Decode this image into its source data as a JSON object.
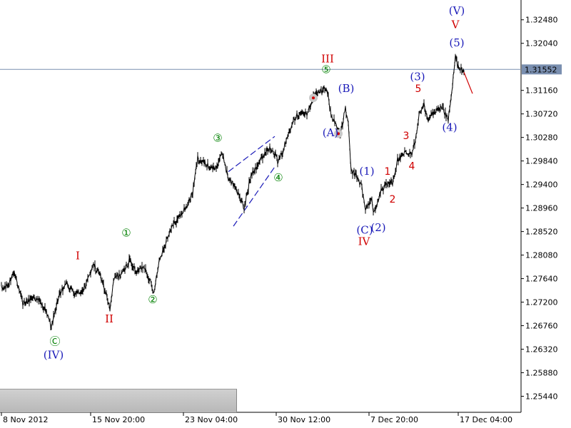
{
  "chart_data": {
    "type": "line",
    "instrument_price": {
      "current": 1.31552,
      "current_label": "1.31552"
    },
    "ylim": [
      1.2514,
      1.3285
    ],
    "y_ticks": [
      "1.32480",
      "1.32040",
      "1.31160",
      "1.30720",
      "1.30280",
      "1.29840",
      "1.29400",
      "1.28960",
      "1.28520",
      "1.28080",
      "1.27640",
      "1.27200",
      "1.26760",
      "1.26320",
      "1.25880",
      "1.25440"
    ],
    "y_tick_values": [
      1.3248,
      1.3204,
      1.3116,
      1.3072,
      1.3028,
      1.2984,
      1.294,
      1.2896,
      1.2852,
      1.2808,
      1.2764,
      1.272,
      1.2676,
      1.2632,
      1.2588,
      1.2544
    ],
    "x_ticks": [
      "8 Nov 2012",
      "15 Nov 20:00",
      "23 Nov 04:00",
      "30 Nov 12:00",
      "7 Dec 20:00",
      "17 Dec 04:00"
    ],
    "x_tick_index": [
      0,
      125,
      255,
      385,
      515,
      640
    ],
    "series": [
      {
        "anchors": [
          [
            0,
            1.2745
          ],
          [
            10,
            1.2752
          ],
          [
            18,
            1.2782
          ],
          [
            22,
            1.2755
          ],
          [
            30,
            1.2715
          ],
          [
            45,
            1.273
          ],
          [
            55,
            1.2718
          ],
          [
            62,
            1.2705
          ],
          [
            70,
            1.2672
          ],
          [
            78,
            1.272
          ],
          [
            90,
            1.2755
          ],
          [
            105,
            1.2735
          ],
          [
            118,
            1.2748
          ],
          [
            128,
            1.279
          ],
          [
            138,
            1.2772
          ],
          [
            148,
            1.273
          ],
          [
            152,
            1.2705
          ],
          [
            158,
            1.2765
          ],
          [
            170,
            1.2775
          ],
          [
            180,
            1.28
          ],
          [
            188,
            1.2775
          ],
          [
            200,
            1.2788
          ],
          [
            208,
            1.276
          ],
          [
            213,
            1.2735
          ],
          [
            220,
            1.2792
          ],
          [
            235,
            1.2852
          ],
          [
            245,
            1.2872
          ],
          [
            260,
            1.29
          ],
          [
            268,
            1.2925
          ],
          [
            275,
            1.299
          ],
          [
            290,
            1.2975
          ],
          [
            300,
            1.297
          ],
          [
            310,
            1.2998
          ],
          [
            318,
            1.295
          ],
          [
            328,
            1.2935
          ],
          [
            340,
            1.2895
          ],
          [
            350,
            1.296
          ],
          [
            360,
            1.298
          ],
          [
            372,
            1.3005
          ],
          [
            380,
            1.3008
          ],
          [
            388,
            1.298
          ],
          [
            395,
            1.3005
          ],
          [
            408,
            1.306
          ],
          [
            418,
            1.3075
          ],
          [
            428,
            1.307
          ],
          [
            438,
            1.3108
          ],
          [
            450,
            1.3115
          ],
          [
            455,
            1.3125
          ],
          [
            462,
            1.3068
          ],
          [
            470,
            1.305
          ],
          [
            475,
            1.303
          ],
          [
            482,
            1.3085
          ],
          [
            486,
            1.305
          ],
          [
            490,
            1.2965
          ],
          [
            498,
            1.2955
          ],
          [
            505,
            1.2935
          ],
          [
            510,
            1.289
          ],
          [
            518,
            1.2915
          ],
          [
            522,
            1.2885
          ],
          [
            532,
            1.293
          ],
          [
            540,
            1.294
          ],
          [
            548,
            1.2945
          ],
          [
            555,
            1.2985
          ],
          [
            565,
            1.2998
          ],
          [
            575,
            1.2995
          ],
          [
            580,
            1.3025
          ],
          [
            585,
            1.307
          ],
          [
            592,
            1.3088
          ],
          [
            598,
            1.306
          ],
          [
            605,
            1.307
          ],
          [
            612,
            1.3078
          ],
          [
            618,
            1.3082
          ],
          [
            626,
            1.306
          ],
          [
            630,
            1.31
          ],
          [
            636,
            1.3178
          ],
          [
            641,
            1.3155
          ],
          [
            648,
            1.315
          ]
        ]
      }
    ],
    "projection": [
      [
        648,
        1.315
      ],
      [
        660,
        1.311
      ]
    ],
    "current_price_line": 1.31552
  },
  "wave_labels": [
    {
      "text": "Ⓒ",
      "i": 75,
      "p": 1.264,
      "color": "#008000"
    },
    {
      "text": "(IV)",
      "i": 73,
      "p": 1.2615,
      "color": "#1a1ab8"
    },
    {
      "text": "I",
      "i": 107,
      "p": 1.28,
      "color": "#d00000"
    },
    {
      "text": "II",
      "i": 151,
      "p": 1.2682,
      "color": "#d00000"
    },
    {
      "text": "①",
      "i": 175,
      "p": 1.2843,
      "color": "#008000"
    },
    {
      "text": "②",
      "i": 212,
      "p": 1.2718,
      "color": "#008000"
    },
    {
      "text": "③",
      "i": 303,
      "p": 1.302,
      "color": "#008000"
    },
    {
      "text": "④",
      "i": 388,
      "p": 1.2946,
      "color": "#008000"
    },
    {
      "text": "⑤",
      "i": 455,
      "p": 1.3148,
      "color": "#008000"
    },
    {
      "text": "III",
      "i": 457,
      "p": 1.3168,
      "color": "#d00000"
    },
    {
      "text": "(B)",
      "i": 483,
      "p": 1.3113,
      "color": "#1a1ab8"
    },
    {
      "text": "(A)",
      "i": 461,
      "p": 1.303,
      "color": "#1a1ab8"
    },
    {
      "text": "(1)",
      "i": 512,
      "p": 1.2958,
      "color": "#1a1ab8"
    },
    {
      "text": "(C)",
      "i": 509,
      "p": 1.2848,
      "color": "#1a1ab8"
    },
    {
      "text": "(2)",
      "i": 528,
      "p": 1.2853,
      "color": "#1a1ab8"
    },
    {
      "text": "IV",
      "i": 508,
      "p": 1.2827,
      "color": "#d00000"
    },
    {
      "text": "1",
      "i": 541,
      "p": 1.2958,
      "color": "#d00000"
    },
    {
      "text": "2",
      "i": 548,
      "p": 1.2906,
      "color": "#d00000"
    },
    {
      "text": "3",
      "i": 567,
      "p": 1.3025,
      "color": "#d00000"
    },
    {
      "text": "4",
      "i": 575,
      "p": 1.2968,
      "color": "#d00000"
    },
    {
      "text": "(3)",
      "i": 583,
      "p": 1.3135,
      "color": "#1a1ab8"
    },
    {
      "text": "5",
      "i": 584,
      "p": 1.3113,
      "color": "#d00000"
    },
    {
      "text": "(4)",
      "i": 628,
      "p": 1.304,
      "color": "#1a1ab8"
    },
    {
      "text": "(5)",
      "i": 638,
      "p": 1.3198,
      "color": "#1a1ab8"
    },
    {
      "text": "V",
      "i": 636,
      "p": 1.3232,
      "color": "#d00000"
    },
    {
      "text": "(V)",
      "i": 638,
      "p": 1.3258,
      "color": "#1a1ab8"
    }
  ],
  "trend_lines": [
    {
      "from": [
        318,
        1.2964
      ],
      "to": [
        383,
        1.303
      ],
      "color": "#1a1ab8"
    },
    {
      "from": [
        325,
        1.2862
      ],
      "to": [
        383,
        1.2973
      ],
      "color": "#1a1ab8"
    }
  ],
  "colors": {
    "price": "#000000",
    "axis": "#000000",
    "price_line": "#7a8fb0",
    "price_badge_bg": "#7a8fb0",
    "price_badge_text": "#ffffff",
    "projection": "#d00000",
    "trend": "#1a1ab8"
  }
}
